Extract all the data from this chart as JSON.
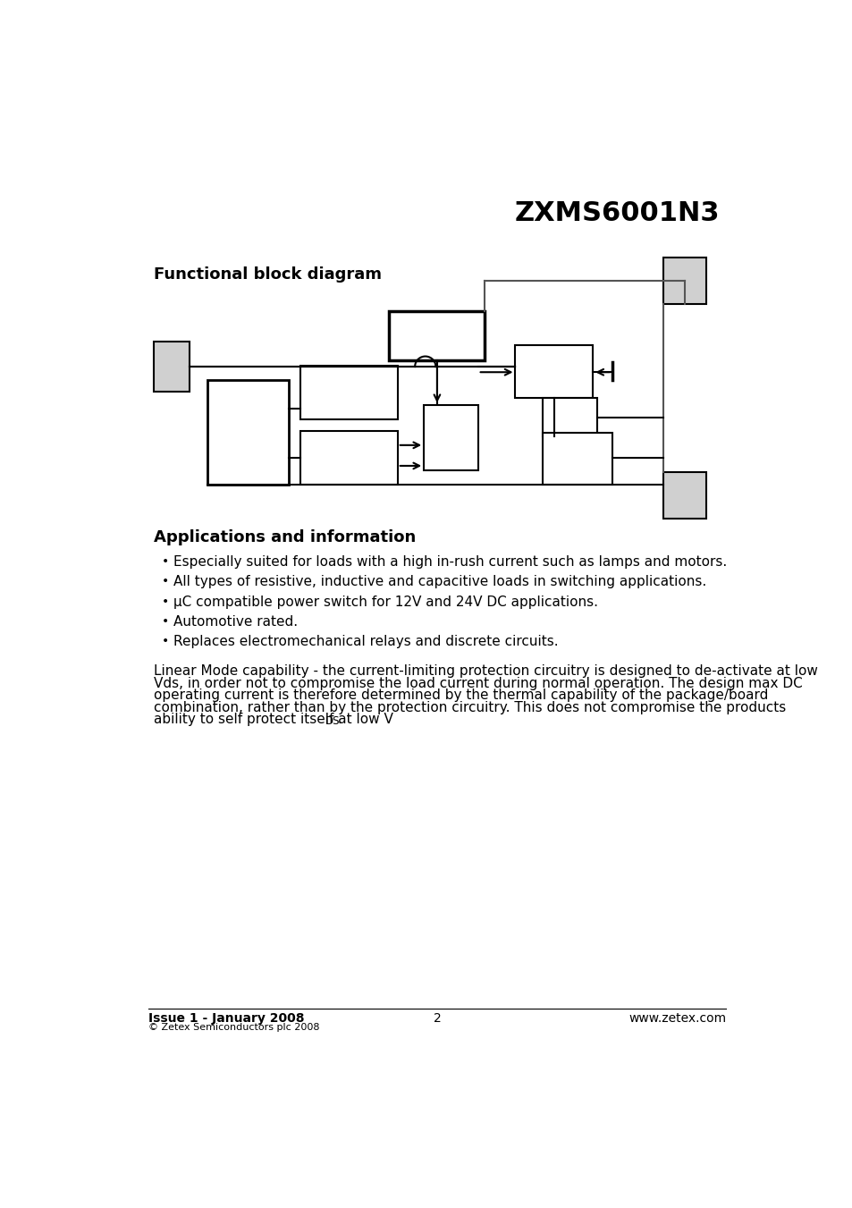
{
  "title": "ZXMS6001N3",
  "section_title": "Functional block diagram",
  "bg_color": "#ffffff",
  "title_fontsize": 22,
  "section_fontsize": 13,
  "gray_fill": "#d0d0d0",
  "white_fill": "#ffffff",
  "black": "#000000",
  "bullet_items": [
    "Especially suited for loads with a high in-rush current such as lamps and motors.",
    "All types of resistive, inductive and capacitive loads in switching applications.",
    "μC compatible power switch for 12V and 24V DC applications.",
    "Automotive rated.",
    "Replaces electromechanical relays and discrete circuits."
  ],
  "apps_title": "Applications and information",
  "footer_left": "Issue 1 - January 2008",
  "footer_copy": "© Zetex Semiconductors plc 2008",
  "footer_center": "2",
  "footer_right": "www.zetex.com"
}
